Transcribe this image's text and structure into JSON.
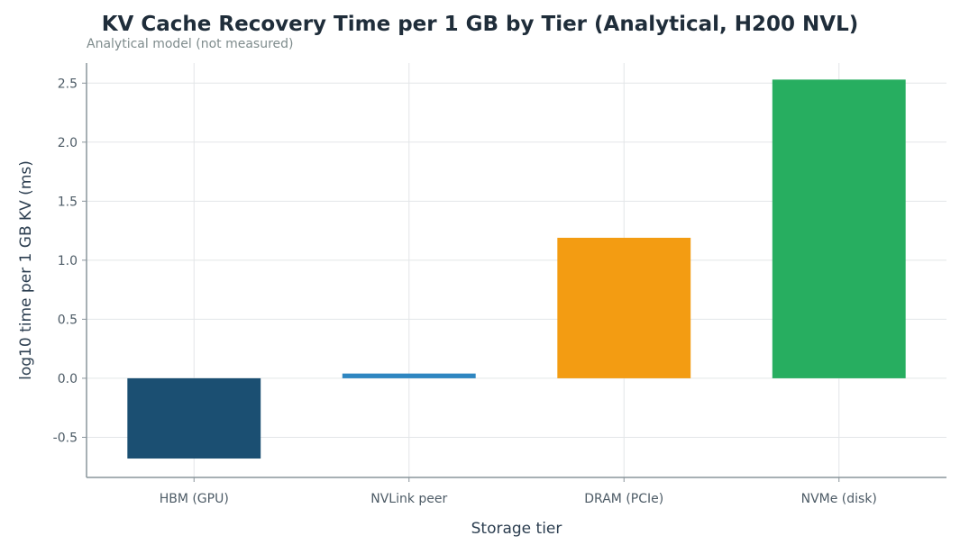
{
  "chart_data": {
    "type": "bar",
    "title": "KV Cache Recovery Time per 1 GB by Tier (Analytical, H200 NVL)",
    "subtitle": "Analytical model (not measured)",
    "xlabel": "Storage tier",
    "ylabel": "log10 time per 1 GB KV (ms)",
    "categories": [
      "HBM (GPU)",
      "NVLink peer",
      "DRAM (PCIe)",
      "NVMe (disk)"
    ],
    "values": [
      -0.68,
      0.04,
      1.19,
      2.53
    ],
    "colors": [
      "#1b4f72",
      "#2e86c1",
      "#f39c12",
      "#27ae60"
    ],
    "ylim": [
      -0.84,
      2.67
    ],
    "yticks": [
      -0.5,
      0.0,
      0.5,
      1.0,
      1.5,
      2.0,
      2.5
    ],
    "ytick_labels": [
      "-0.5",
      "0.0",
      "0.5",
      "1.0",
      "1.5",
      "2.0",
      "2.5"
    ],
    "grid": true
  }
}
